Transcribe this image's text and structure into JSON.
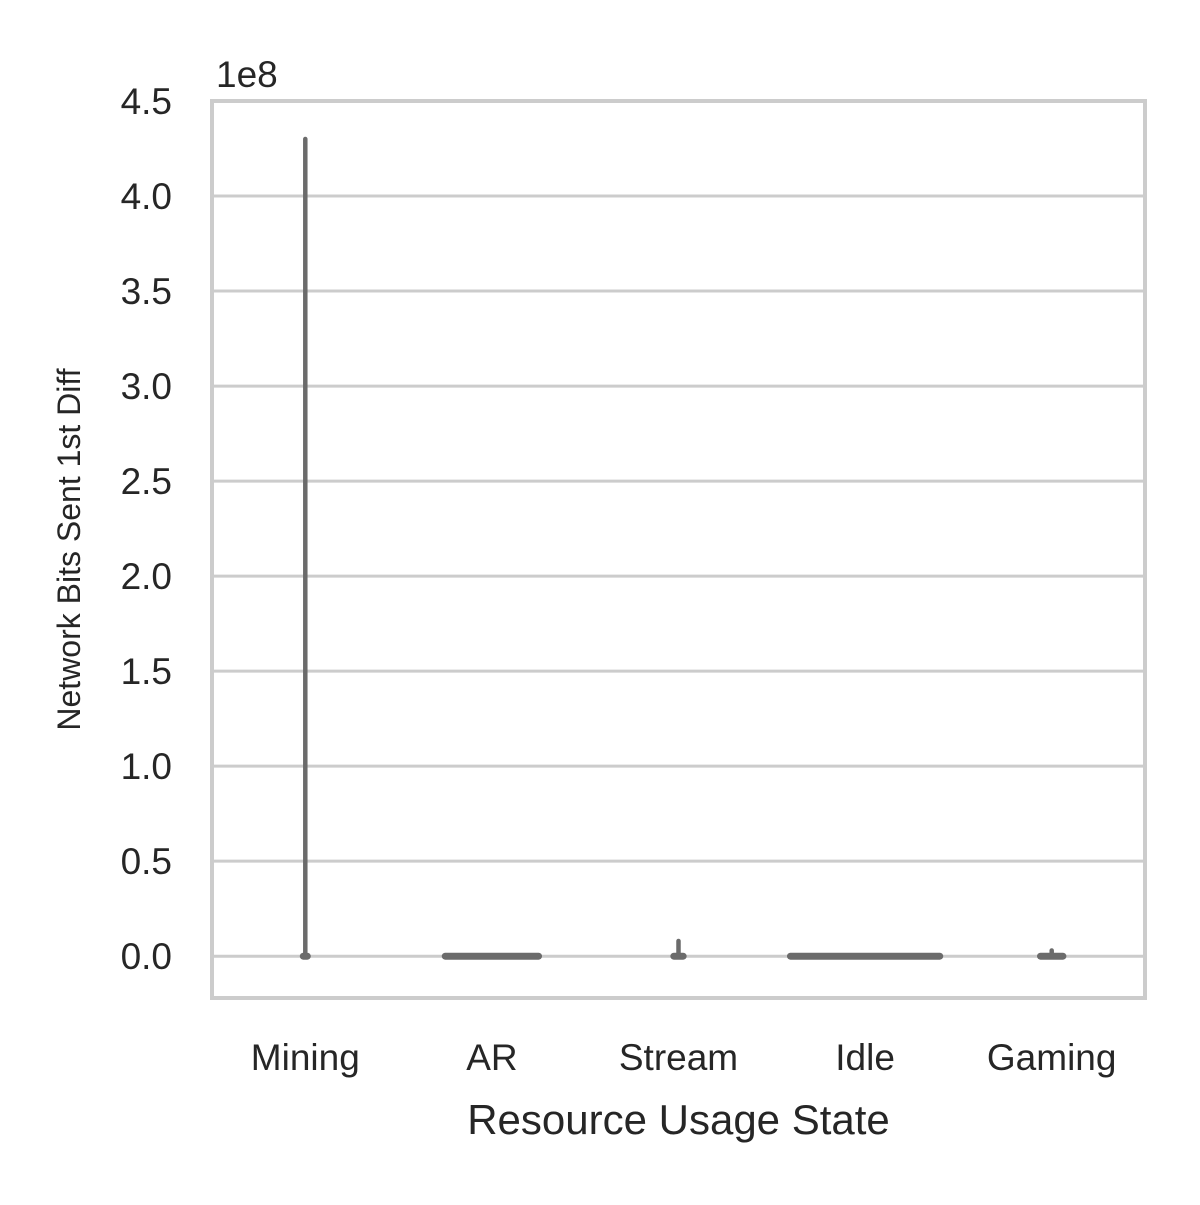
{
  "chart_data": {
    "type": "violin",
    "categories": [
      "Mining",
      "AR",
      "Stream",
      "Idle",
      "Gaming"
    ],
    "series": [
      {
        "category": "Mining",
        "min": 0,
        "max": 430000000,
        "width_fraction": 0.02
      },
      {
        "category": "AR",
        "min": 0,
        "max": 0,
        "width_fraction": 0.5
      },
      {
        "category": "Stream",
        "min": 0,
        "max": 8000000,
        "width_fraction": 0.05
      },
      {
        "category": "Idle",
        "min": 0,
        "max": 0,
        "width_fraction": 0.8
      },
      {
        "category": "Gaming",
        "min": 0,
        "max": 3000000,
        "width_fraction": 0.12
      }
    ],
    "title": "",
    "xlabel": "Resource Usage State",
    "ylabel": "Network Bits Sent 1st Diff",
    "ylim": [
      -22000000,
      450000000
    ],
    "yticks": [
      0,
      50000000,
      100000000,
      150000000,
      200000000,
      250000000,
      300000000,
      350000000,
      400000000,
      450000000
    ],
    "ytick_labels": [
      "0.0",
      "0.5",
      "1.0",
      "1.5",
      "2.0",
      "2.5",
      "3.0",
      "3.5",
      "4.0",
      "4.5"
    ],
    "offset_label": "1e8",
    "grid": "horizontal",
    "legend": "none",
    "colors": {
      "mark": "#6b6b6b",
      "grid": "#cccccc",
      "text": "#262626",
      "background": "#ffffff"
    }
  }
}
